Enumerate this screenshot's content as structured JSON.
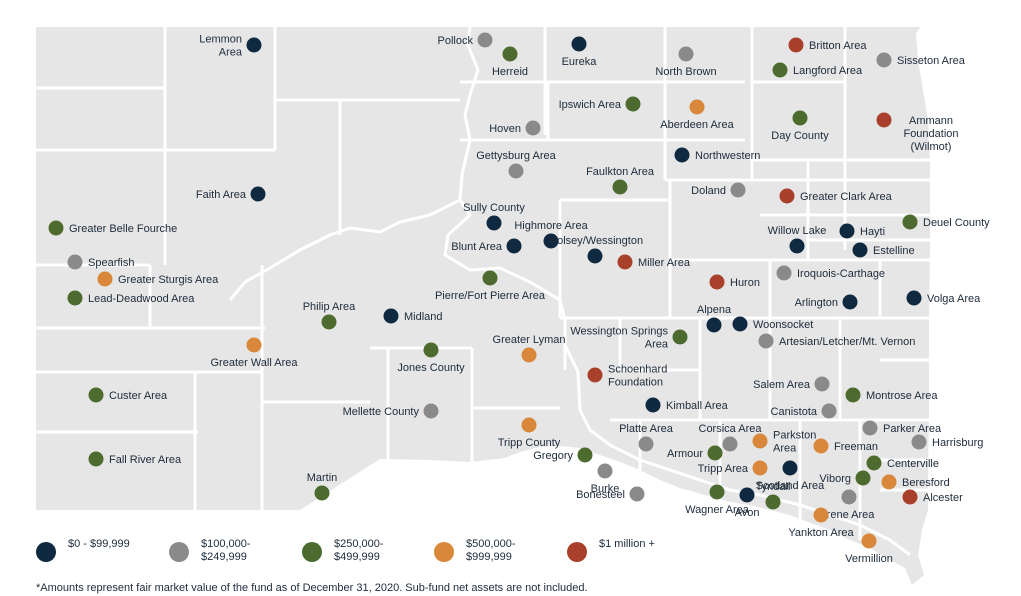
{
  "colors": {
    "land": "#e6e6e6",
    "county_line": "#ffffff",
    "label": "#1d2b3a",
    "ranges": {
      "r1": "#0f2a40",
      "r2": "#8a8a8a",
      "r3": "#4d6b2e",
      "r4": "#d9873a",
      "r5": "#a8402b"
    }
  },
  "legend": [
    {
      "range": "r1",
      "label": "$0 - $99,999"
    },
    {
      "range": "r2",
      "label": "$100,000- $249,999"
    },
    {
      "range": "r3",
      "label": "$250,000- $499,999"
    },
    {
      "range": "r4",
      "label": "$500,000- $999,999"
    },
    {
      "range": "r5",
      "label": "$1 million +"
    }
  ],
  "footnote": "*Amounts represent fair market value of the fund as of December 31, 2020. Sub-fund net assets are not included.",
  "funds": [
    {
      "name": "Lemmon Area",
      "range": "r1"
    },
    {
      "name": "Pollock",
      "range": "r2"
    },
    {
      "name": "Herreid",
      "range": "r3"
    },
    {
      "name": "Eureka",
      "range": "r1"
    },
    {
      "name": "North Brown",
      "range": "r2"
    },
    {
      "name": "Britton Area",
      "range": "r5"
    },
    {
      "name": "Sisseton Area",
      "range": "r2"
    },
    {
      "name": "Langford Area",
      "range": "r3"
    },
    {
      "name": "Ipswich Area",
      "range": "r3"
    },
    {
      "name": "Aberdeen Area",
      "range": "r4"
    },
    {
      "name": "Day County",
      "range": "r3"
    },
    {
      "name": "Ammann Foundation (Wilmot)",
      "range": "r5"
    },
    {
      "name": "Hoven",
      "range": "r2"
    },
    {
      "name": "Gettysburg Area",
      "range": "r2"
    },
    {
      "name": "Northwestern",
      "range": "r1"
    },
    {
      "name": "Faulkton Area",
      "range": "r3"
    },
    {
      "name": "Faith Area",
      "range": "r1"
    },
    {
      "name": "Doland",
      "range": "r2"
    },
    {
      "name": "Greater Clark Area",
      "range": "r5"
    },
    {
      "name": "Greater Belle Fourche",
      "range": "r3"
    },
    {
      "name": "Sully County",
      "range": "r1"
    },
    {
      "name": "Deuel County",
      "range": "r3"
    },
    {
      "name": "Highmore Area",
      "range": "r1"
    },
    {
      "name": "Hayti",
      "range": "r1"
    },
    {
      "name": "Willow Lake",
      "range": "r1"
    },
    {
      "name": "Blunt Area",
      "range": "r1"
    },
    {
      "name": "Wolsey/Wessington",
      "range": "r1"
    },
    {
      "name": "Estelline",
      "range": "r1"
    },
    {
      "name": "Spearfish",
      "range": "r2"
    },
    {
      "name": "Miller Area",
      "range": "r5"
    },
    {
      "name": "Greater Sturgis Area",
      "range": "r4"
    },
    {
      "name": "Iroquois-Carthage",
      "range": "r2"
    },
    {
      "name": "Huron",
      "range": "r5"
    },
    {
      "name": "Pierre/Fort Pierre Area",
      "range": "r3"
    },
    {
      "name": "Lead-Deadwood Area",
      "range": "r3"
    },
    {
      "name": "Arlington",
      "range": "r1"
    },
    {
      "name": "Volga Area",
      "range": "r1"
    },
    {
      "name": "Philip Area",
      "range": "r3"
    },
    {
      "name": "Midland",
      "range": "r1"
    },
    {
      "name": "Alpena",
      "range": "r1"
    },
    {
      "name": "Woonsocket",
      "range": "r1"
    },
    {
      "name": "Wessington Springs Area",
      "range": "r3"
    },
    {
      "name": "Greater Lyman",
      "range": "r4"
    },
    {
      "name": "Artesian/Letcher/Mt. Vernon",
      "range": "r2"
    },
    {
      "name": "Greater Wall Area",
      "range": "r4"
    },
    {
      "name": "Jones County",
      "range": "r3"
    },
    {
      "name": "Schoenhard Foundation",
      "range": "r5"
    },
    {
      "name": "Salem Area",
      "range": "r2"
    },
    {
      "name": "Custer Area",
      "range": "r3"
    },
    {
      "name": "Montrose Area",
      "range": "r3"
    },
    {
      "name": "Mellette County",
      "range": "r2"
    },
    {
      "name": "Kimball Area",
      "range": "r1"
    },
    {
      "name": "Canistota",
      "range": "r2"
    },
    {
      "name": "Parker Area",
      "range": "r2"
    },
    {
      "name": "Tripp County",
      "range": "r4"
    },
    {
      "name": "Platte Area",
      "range": "r2"
    },
    {
      "name": "Corsica Area",
      "range": "r2"
    },
    {
      "name": "Parkston Area",
      "range": "r4"
    },
    {
      "name": "Harrisburg",
      "range": "r2"
    },
    {
      "name": "Freeman",
      "range": "r4"
    },
    {
      "name": "Armour",
      "range": "r3"
    },
    {
      "name": "Fall River Area",
      "range": "r3"
    },
    {
      "name": "Gregory",
      "range": "r3"
    },
    {
      "name": "Centerville",
      "range": "r3"
    },
    {
      "name": "Tripp Area",
      "range": "r4"
    },
    {
      "name": "Viborg",
      "range": "r3"
    },
    {
      "name": "Beresford",
      "range": "r4"
    },
    {
      "name": "Scotland Area",
      "range": "r1"
    },
    {
      "name": "Martin",
      "range": "r3"
    },
    {
      "name": "Burke",
      "range": "r2"
    },
    {
      "name": "Tyndall",
      "range": "r3"
    },
    {
      "name": "Bonesteel",
      "range": "r2"
    },
    {
      "name": "Irene Area",
      "range": "r2"
    },
    {
      "name": "Alcester",
      "range": "r5"
    },
    {
      "name": "Wagner Area",
      "range": "r3"
    },
    {
      "name": "Avon",
      "range": "r1"
    },
    {
      "name": "Yankton Area",
      "range": "r4"
    },
    {
      "name": "Vermillion",
      "range": "r4"
    }
  ]
}
